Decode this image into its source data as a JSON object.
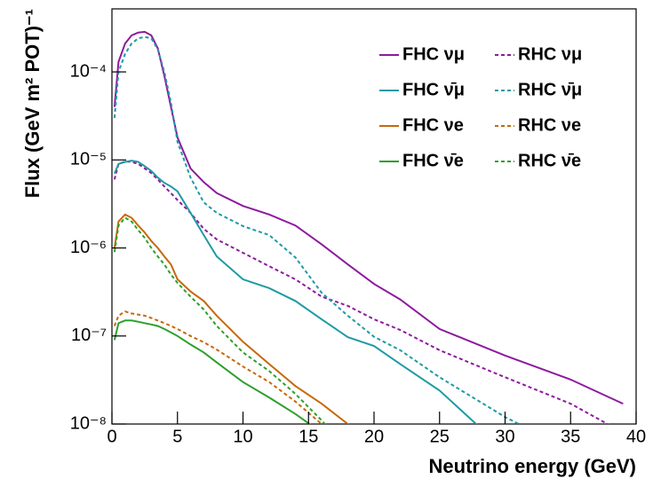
{
  "chart_data": {
    "type": "line",
    "xlabel": "Neutrino energy (GeV)",
    "ylabel": "Flux (GeV m² POT)⁻¹",
    "ylog": true,
    "grid": false,
    "legend": "top-right",
    "xlim": [
      0,
      40
    ],
    "ylim": [
      1e-08,
      0.00052
    ],
    "xticks": [
      0,
      5,
      10,
      15,
      20,
      25,
      30,
      35,
      40
    ],
    "yticks": [
      {
        "value": 1e-08,
        "label": "10⁻⁸"
      },
      {
        "value": 1e-07,
        "label": "10⁻⁷"
      },
      {
        "value": 1e-06,
        "label": "10⁻⁶"
      },
      {
        "value": 1e-05,
        "label": "10⁻⁵"
      },
      {
        "value": 0.0001,
        "label": "10⁻⁴"
      }
    ],
    "x": [
      0.2,
      0.5,
      1,
      1.5,
      2,
      2.5,
      3,
      3.5,
      4,
      4.5,
      5,
      6,
      7,
      8,
      10,
      12,
      14,
      16,
      18,
      20,
      22,
      25,
      30,
      35,
      39
    ],
    "series": [
      {
        "name": "FHC νμ",
        "color": "#8e1a9e",
        "style": "solid",
        "values": [
          4e-05,
          0.00013,
          0.00021,
          0.00026,
          0.00028,
          0.000285,
          0.00026,
          0.000185,
          9e-05,
          4e-05,
          1.8e-05,
          8e-06,
          5.6e-06,
          4.2e-06,
          3e-06,
          2.4e-06,
          1.8e-06,
          1.1e-06,
          6.5e-07,
          3.9e-07,
          2.6e-07,
          1.2e-07,
          6e-08,
          3.2e-08,
          1.7e-08
        ]
      },
      {
        "name": "RHC νμ",
        "color": "#8e1a9e",
        "style": "dashed",
        "values": [
          6e-06,
          9e-06,
          9.6e-06,
          9.5e-06,
          9e-06,
          8e-06,
          7.1e-06,
          6e-06,
          5e-06,
          4.2e-06,
          3.5e-06,
          2.5e-06,
          1.65e-06,
          1.25e-06,
          8.8e-07,
          6.2e-07,
          4.4e-07,
          2.8e-07,
          2.2e-07,
          1.55e-07,
          1.17e-07,
          6.9e-08,
          3.4e-08,
          1.7e-08,
          8e-09
        ]
      },
      {
        "name": "FHC ν̄μ",
        "color": "#1e9aa5",
        "style": "solid",
        "values": [
          7e-06,
          9e-06,
          9.5e-06,
          9.8e-06,
          9.5e-06,
          8.5e-06,
          7.5e-06,
          6.3e-06,
          5.5e-06,
          5e-06,
          4.4e-06,
          2.5e-06,
          1.4e-06,
          8e-07,
          4.4e-07,
          3.5e-07,
          2.5e-07,
          1.55e-07,
          9.7e-08,
          7.7e-08,
          4.8e-08,
          2.4e-08,
          5e-09,
          null,
          null
        ]
      },
      {
        "name": "RHC ν̄μ",
        "color": "#1e9aa5",
        "style": "dashed",
        "values": [
          3e-05,
          0.0001,
          0.00016,
          0.00021,
          0.00024,
          0.00025,
          0.00024,
          0.00018,
          0.0001,
          4.5e-05,
          1.6e-05,
          6.3e-06,
          3.3e-06,
          2.5e-06,
          1.77e-06,
          1.4e-06,
          7.8e-07,
          3.1e-07,
          1.7e-07,
          9.8e-08,
          6.9e-08,
          3.4e-08,
          1.2e-08,
          5e-09,
          null
        ]
      },
      {
        "name": "FHC νe",
        "color": "#c8680a",
        "style": "solid",
        "values": [
          1e-06,
          2e-06,
          2.4e-06,
          2.2e-06,
          1.8e-06,
          1.5e-06,
          1.2e-06,
          1e-06,
          8e-07,
          6.5e-07,
          4.4e-07,
          3.2e-07,
          2.5e-07,
          1.7e-07,
          8.6e-08,
          4.8e-08,
          2.7e-08,
          1.7e-08,
          1e-08,
          5e-09,
          null,
          null,
          null,
          null,
          null
        ]
      },
      {
        "name": "RHC νe",
        "color": "#c8680a",
        "style": "dashed",
        "values": [
          1.3e-07,
          1.7e-07,
          1.9e-07,
          1.8e-07,
          1.75e-07,
          1.7e-07,
          1.6e-07,
          1.5e-07,
          1.4e-07,
          1.3e-07,
          1.2e-07,
          1e-07,
          8.5e-08,
          7e-08,
          4.5e-08,
          3e-08,
          1.8e-08,
          1e-08,
          5e-09,
          null,
          null,
          null,
          null,
          null,
          null
        ]
      },
      {
        "name": "FHC ν̄e",
        "color": "#2ca02c",
        "style": "solid",
        "values": [
          9e-08,
          1.4e-07,
          1.5e-07,
          1.5e-07,
          1.45e-07,
          1.4e-07,
          1.35e-07,
          1.3e-07,
          1.2e-07,
          1.1e-07,
          1e-07,
          8e-08,
          6.5e-08,
          5e-08,
          3e-08,
          2e-08,
          1.3e-08,
          8e-09,
          null,
          null,
          null,
          null,
          null,
          null,
          null
        ]
      },
      {
        "name": "RHC ν̄e",
        "color": "#2ca02c",
        "style": "dashed",
        "values": [
          9e-07,
          1.8e-06,
          2.2e-06,
          2e-06,
          1.6e-06,
          1.3e-06,
          1e-06,
          8e-07,
          6.5e-07,
          5e-07,
          4e-07,
          2.8e-07,
          2e-07,
          1.3e-07,
          6.5e-08,
          4e-08,
          2.2e-08,
          1.1e-08,
          5e-09,
          null,
          null,
          null,
          null,
          null,
          null
        ]
      }
    ]
  }
}
